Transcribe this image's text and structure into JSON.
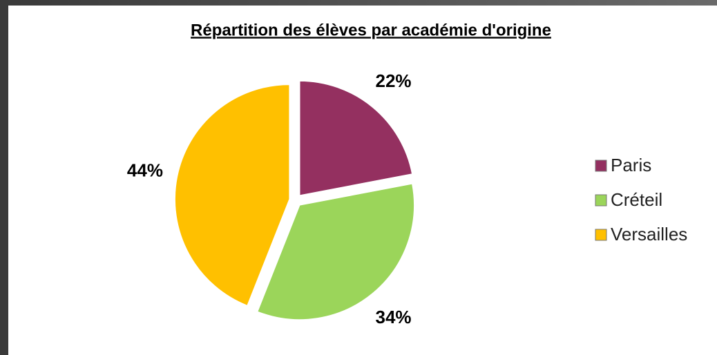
{
  "chart_data": {
    "type": "pie",
    "title": "Répartition des élèves par académie d'origine",
    "categories": [
      "Paris",
      "Créteil",
      "Versailles"
    ],
    "values": [
      22,
      34,
      44
    ],
    "value_labels": [
      "22%",
      "34%",
      "44%"
    ],
    "colors": [
      "#943060",
      "#9bd55a",
      "#ffc000"
    ],
    "legend": "right"
  }
}
